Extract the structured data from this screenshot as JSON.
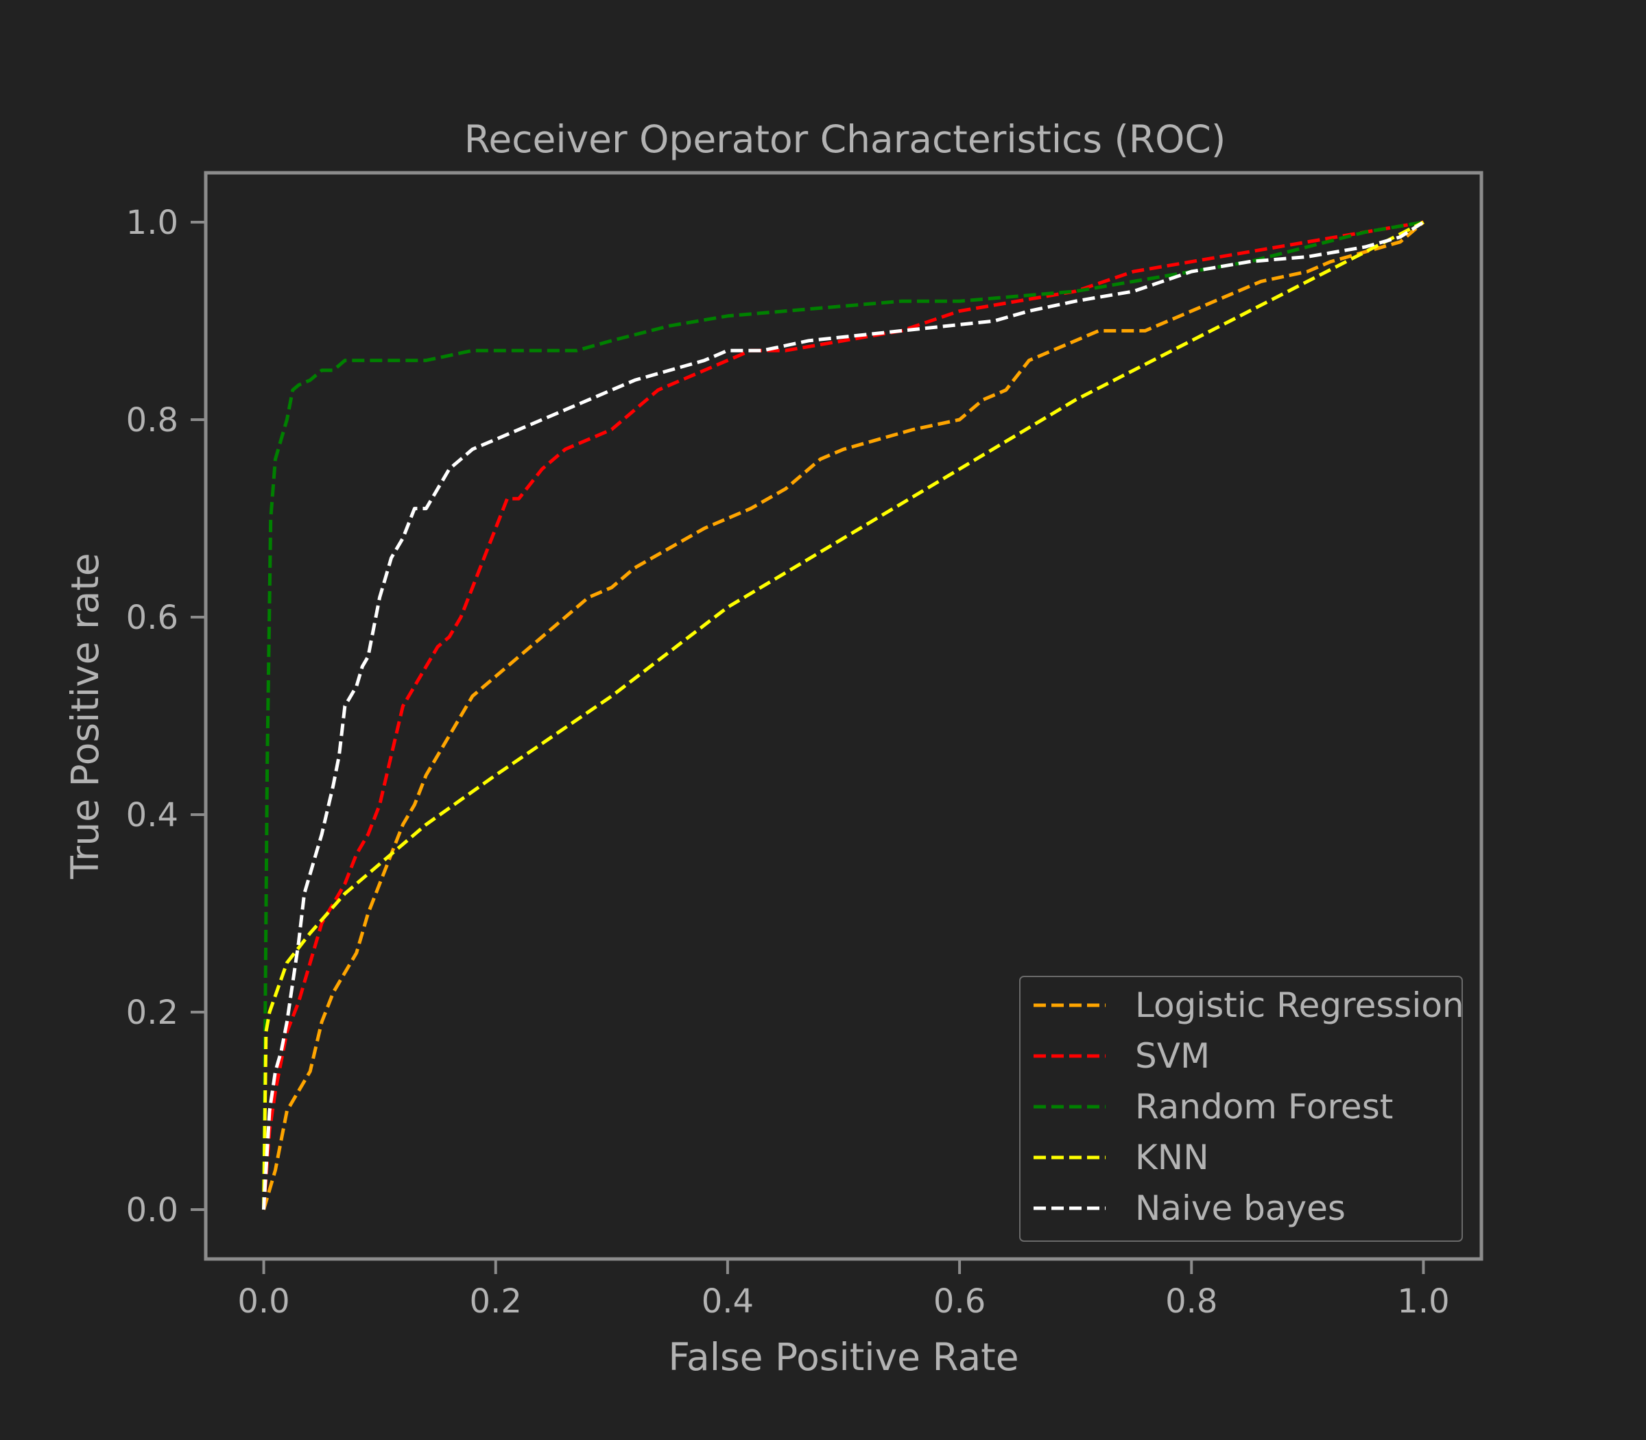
{
  "colors": {
    "background": "#222222",
    "frame": "#8c8c8c",
    "text": "#b3b3b3",
    "legend_frame": "#6a6a6a"
  },
  "chart_data": {
    "type": "line",
    "title": "Receiver Operator Characteristics (ROC)",
    "xlabel": "False Positive Rate",
    "ylabel": "True Positive rate",
    "xlim": [
      -0.05,
      1.05
    ],
    "ylim": [
      -0.05,
      1.05
    ],
    "xticks": [
      "0.0",
      "0.2",
      "0.4",
      "0.6",
      "0.8",
      "1.0"
    ],
    "yticks": [
      "0.0",
      "0.2",
      "0.4",
      "0.6",
      "0.8",
      "1.0"
    ],
    "grid": false,
    "legend_position": "lower-right",
    "line_style": "dashed",
    "series": [
      {
        "name": "Logistic Regression",
        "color": "#ffa500",
        "x": [
          0.0,
          0.005,
          0.01,
          0.015,
          0.02,
          0.03,
          0.04,
          0.05,
          0.06,
          0.07,
          0.08,
          0.09,
          0.1,
          0.11,
          0.12,
          0.13,
          0.14,
          0.15,
          0.16,
          0.17,
          0.18,
          0.2,
          0.22,
          0.24,
          0.26,
          0.28,
          0.3,
          0.32,
          0.35,
          0.38,
          0.4,
          0.42,
          0.45,
          0.48,
          0.5,
          0.53,
          0.56,
          0.6,
          0.62,
          0.64,
          0.66,
          0.68,
          0.7,
          0.72,
          0.74,
          0.76,
          0.78,
          0.8,
          0.82,
          0.84,
          0.86,
          0.88,
          0.9,
          0.92,
          0.95,
          0.98,
          1.0
        ],
        "y": [
          0.0,
          0.02,
          0.04,
          0.07,
          0.1,
          0.12,
          0.14,
          0.19,
          0.22,
          0.24,
          0.26,
          0.3,
          0.33,
          0.36,
          0.39,
          0.41,
          0.44,
          0.46,
          0.48,
          0.5,
          0.52,
          0.54,
          0.56,
          0.58,
          0.6,
          0.62,
          0.63,
          0.65,
          0.67,
          0.69,
          0.7,
          0.71,
          0.73,
          0.76,
          0.77,
          0.78,
          0.79,
          0.8,
          0.82,
          0.83,
          0.86,
          0.87,
          0.88,
          0.89,
          0.89,
          0.89,
          0.9,
          0.91,
          0.92,
          0.93,
          0.94,
          0.945,
          0.95,
          0.96,
          0.97,
          0.98,
          1.0
        ]
      },
      {
        "name": "SVM",
        "color": "#ff0000",
        "x": [
          0.0,
          0.005,
          0.01,
          0.015,
          0.02,
          0.03,
          0.04,
          0.05,
          0.06,
          0.07,
          0.08,
          0.09,
          0.1,
          0.11,
          0.12,
          0.13,
          0.14,
          0.15,
          0.16,
          0.17,
          0.18,
          0.19,
          0.2,
          0.21,
          0.22,
          0.24,
          0.26,
          0.28,
          0.3,
          0.32,
          0.34,
          0.36,
          0.38,
          0.4,
          0.42,
          0.45,
          0.5,
          0.55,
          0.6,
          0.65,
          0.7,
          0.75,
          0.8,
          0.85,
          0.9,
          0.95,
          1.0
        ],
        "y": [
          0.0,
          0.08,
          0.12,
          0.15,
          0.18,
          0.21,
          0.25,
          0.29,
          0.31,
          0.33,
          0.36,
          0.38,
          0.41,
          0.46,
          0.51,
          0.53,
          0.55,
          0.57,
          0.58,
          0.6,
          0.63,
          0.66,
          0.69,
          0.72,
          0.72,
          0.75,
          0.77,
          0.78,
          0.79,
          0.81,
          0.83,
          0.84,
          0.85,
          0.86,
          0.87,
          0.87,
          0.88,
          0.89,
          0.91,
          0.92,
          0.93,
          0.95,
          0.96,
          0.97,
          0.98,
          0.99,
          1.0
        ]
      },
      {
        "name": "Random Forest",
        "color": "#008000",
        "x": [
          0.0,
          0.003,
          0.006,
          0.01,
          0.015,
          0.02,
          0.025,
          0.03,
          0.04,
          0.05,
          0.06,
          0.07,
          0.1,
          0.14,
          0.18,
          0.22,
          0.27,
          0.3,
          0.35,
          0.4,
          0.45,
          0.5,
          0.55,
          0.6,
          0.65,
          0.7,
          0.75,
          0.8,
          0.85,
          0.9,
          0.95,
          1.0
        ],
        "y": [
          0.0,
          0.45,
          0.7,
          0.76,
          0.78,
          0.8,
          0.83,
          0.835,
          0.84,
          0.85,
          0.85,
          0.86,
          0.86,
          0.86,
          0.87,
          0.87,
          0.87,
          0.88,
          0.895,
          0.905,
          0.91,
          0.915,
          0.92,
          0.92,
          0.925,
          0.93,
          0.94,
          0.95,
          0.96,
          0.975,
          0.99,
          1.0
        ]
      },
      {
        "name": "KNN",
        "color": "#ffff00",
        "x": [
          0.0,
          0.002,
          0.005,
          0.02,
          0.04,
          0.07,
          0.11,
          0.14,
          0.2,
          0.3,
          0.4,
          0.5,
          0.6,
          0.7,
          0.8,
          0.9,
          1.0
        ],
        "y": [
          0.0,
          0.18,
          0.2,
          0.25,
          0.28,
          0.32,
          0.36,
          0.39,
          0.44,
          0.52,
          0.61,
          0.68,
          0.75,
          0.82,
          0.88,
          0.94,
          1.0
        ]
      },
      {
        "name": "Naive bayes",
        "color": "#ffffff",
        "x": [
          0.0,
          0.005,
          0.01,
          0.015,
          0.02,
          0.03,
          0.035,
          0.04,
          0.045,
          0.05,
          0.06,
          0.065,
          0.07,
          0.08,
          0.085,
          0.09,
          0.1,
          0.105,
          0.11,
          0.12,
          0.13,
          0.14,
          0.15,
          0.16,
          0.17,
          0.18,
          0.2,
          0.22,
          0.24,
          0.26,
          0.28,
          0.3,
          0.32,
          0.35,
          0.38,
          0.4,
          0.43,
          0.47,
          0.55,
          0.63,
          0.66,
          0.7,
          0.75,
          0.8,
          0.85,
          0.9,
          0.95,
          0.98,
          1.0
        ],
        "y": [
          0.0,
          0.1,
          0.14,
          0.16,
          0.19,
          0.27,
          0.32,
          0.34,
          0.36,
          0.38,
          0.43,
          0.46,
          0.51,
          0.53,
          0.55,
          0.56,
          0.62,
          0.64,
          0.66,
          0.68,
          0.71,
          0.71,
          0.73,
          0.75,
          0.76,
          0.77,
          0.78,
          0.79,
          0.8,
          0.81,
          0.82,
          0.83,
          0.84,
          0.85,
          0.86,
          0.87,
          0.87,
          0.88,
          0.89,
          0.9,
          0.91,
          0.92,
          0.93,
          0.95,
          0.96,
          0.965,
          0.975,
          0.985,
          1.0
        ]
      }
    ]
  }
}
